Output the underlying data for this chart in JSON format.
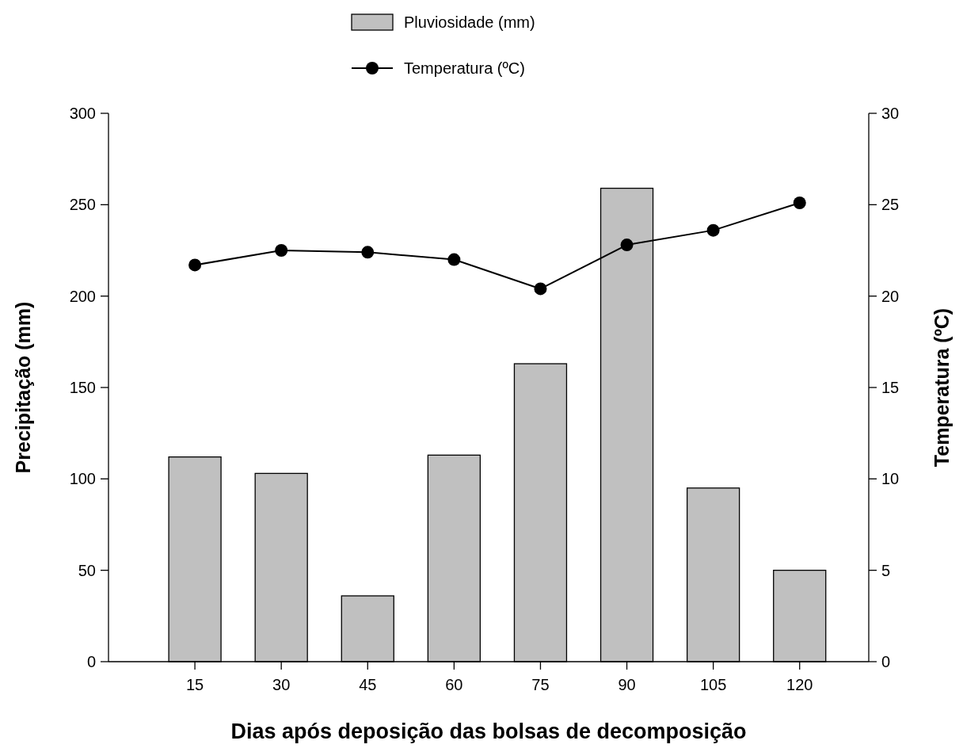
{
  "chart_data": {
    "type": "bar",
    "xlabel": "Dias após deposição das bolsas de decomposição",
    "ylabel": "Precipitação (mm)",
    "y2label": "Temperatura (ºC)",
    "categories": [
      "15",
      "30",
      "45",
      "60",
      "75",
      "90",
      "105",
      "120"
    ],
    "series": [
      {
        "name": "Pluviosidade (mm)",
        "color": "#c0c0c0",
        "values": [
          112,
          103,
          36,
          113,
          163,
          259,
          95,
          50
        ]
      },
      {
        "name": "Temperatura (ºC)",
        "type": "line",
        "axis": "y2",
        "color": "#000000",
        "marker": "circle",
        "values": [
          21.7,
          22.5,
          22.4,
          22.0,
          20.4,
          22.8,
          23.6,
          25.1
        ]
      }
    ],
    "ylim": [
      0,
      300
    ],
    "yticks": [
      0,
      50,
      100,
      150,
      200,
      250,
      300
    ],
    "y2lim": [
      0,
      30
    ],
    "y2ticks": [
      0,
      5,
      10,
      15,
      20,
      25,
      30
    ],
    "legend": "top",
    "grid": false
  }
}
